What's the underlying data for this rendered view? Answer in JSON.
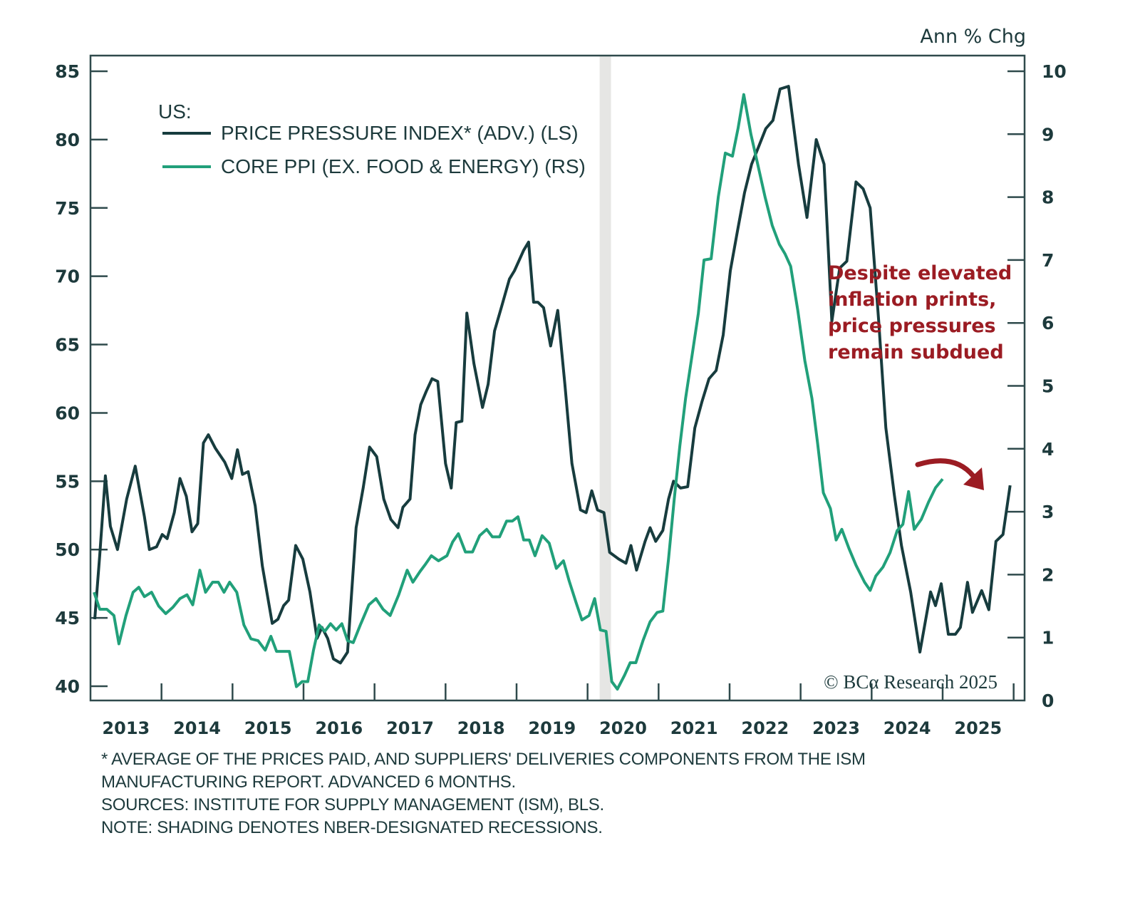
{
  "chart_data": {
    "type": "line",
    "title": "",
    "legend_heading": "US:",
    "legend_position": "top-left",
    "right_axis_title": "Ann % Chg",
    "annotation": [
      "Despite elevated",
      "inflation prints,",
      "price pressures",
      "remain subdued"
    ],
    "annotation_arrow": "curved-arrow-down-right",
    "copyright": "© BCα Research 2025",
    "x_range": [
      2013.0,
      2026.0
    ],
    "x_tick_labels": [
      "2013",
      "2014",
      "2015",
      "2016",
      "2017",
      "2018",
      "2019",
      "2020",
      "2021",
      "2022",
      "2023",
      "2024",
      "2025"
    ],
    "left_axis": {
      "label": "LS",
      "range": [
        40,
        85
      ],
      "ticks": [
        40,
        45,
        50,
        55,
        60,
        65,
        70,
        75,
        80,
        85
      ]
    },
    "right_axis": {
      "label": "RS",
      "range": [
        0,
        10
      ],
      "ticks": [
        0,
        1,
        2,
        3,
        4,
        5,
        6,
        7,
        8,
        9,
        10
      ]
    },
    "recessions": [
      [
        2020.17,
        2020.33
      ]
    ],
    "grid": false,
    "series": [
      {
        "name": "PRICE PRESSURE INDEX* (ADV.) (LS)",
        "axis": "left",
        "color": "#173c3e",
        "points": [
          [
            2013.06,
            44.9
          ],
          [
            2013.13,
            49.6
          ],
          [
            2013.21,
            55.4
          ],
          [
            2013.28,
            51.7
          ],
          [
            2013.38,
            50.0
          ],
          [
            2013.51,
            53.7
          ],
          [
            2013.63,
            56.1
          ],
          [
            2013.76,
            52.4
          ],
          [
            2013.83,
            50.0
          ],
          [
            2013.93,
            50.2
          ],
          [
            2014.01,
            51.1
          ],
          [
            2014.08,
            50.8
          ],
          [
            2014.18,
            52.7
          ],
          [
            2014.26,
            55.2
          ],
          [
            2014.35,
            53.9
          ],
          [
            2014.43,
            51.3
          ],
          [
            2014.51,
            51.9
          ],
          [
            2014.59,
            57.8
          ],
          [
            2014.66,
            58.4
          ],
          [
            2014.76,
            57.4
          ],
          [
            2014.89,
            56.4
          ],
          [
            2014.99,
            55.2
          ],
          [
            2015.07,
            57.3
          ],
          [
            2015.14,
            55.5
          ],
          [
            2015.22,
            55.7
          ],
          [
            2015.32,
            53.2
          ],
          [
            2015.42,
            48.8
          ],
          [
            2015.56,
            44.6
          ],
          [
            2015.64,
            44.9
          ],
          [
            2015.72,
            45.9
          ],
          [
            2015.79,
            46.3
          ],
          [
            2015.89,
            50.3
          ],
          [
            2015.99,
            49.3
          ],
          [
            2016.09,
            46.9
          ],
          [
            2016.19,
            43.5
          ],
          [
            2016.26,
            44.3
          ],
          [
            2016.34,
            43.5
          ],
          [
            2016.42,
            42.0
          ],
          [
            2016.52,
            41.7
          ],
          [
            2016.62,
            42.5
          ],
          [
            2016.74,
            51.6
          ],
          [
            2016.84,
            54.5
          ],
          [
            2016.93,
            57.5
          ],
          [
            2017.03,
            56.8
          ],
          [
            2017.13,
            53.7
          ],
          [
            2017.23,
            52.2
          ],
          [
            2017.33,
            51.6
          ],
          [
            2017.4,
            53.1
          ],
          [
            2017.5,
            53.7
          ],
          [
            2017.57,
            58.4
          ],
          [
            2017.65,
            60.6
          ],
          [
            2017.73,
            61.6
          ],
          [
            2017.81,
            62.5
          ],
          [
            2017.89,
            62.3
          ],
          [
            2018.0,
            56.3
          ],
          [
            2018.08,
            54.5
          ],
          [
            2018.15,
            59.3
          ],
          [
            2018.23,
            59.4
          ],
          [
            2018.3,
            67.3
          ],
          [
            2018.4,
            63.6
          ],
          [
            2018.52,
            60.4
          ],
          [
            2018.6,
            62.1
          ],
          [
            2018.69,
            66.0
          ],
          [
            2018.79,
            67.8
          ],
          [
            2018.9,
            69.8
          ],
          [
            2018.97,
            70.4
          ],
          [
            2019.1,
            71.9
          ],
          [
            2019.17,
            72.5
          ],
          [
            2019.24,
            68.1
          ],
          [
            2019.3,
            68.1
          ],
          [
            2019.38,
            67.7
          ],
          [
            2019.48,
            64.9
          ],
          [
            2019.58,
            67.5
          ],
          [
            2019.68,
            62.1
          ],
          [
            2019.78,
            56.3
          ],
          [
            2019.9,
            52.9
          ],
          [
            2019.98,
            52.7
          ],
          [
            2020.06,
            54.3
          ],
          [
            2020.14,
            52.9
          ],
          [
            2020.23,
            52.7
          ],
          [
            2020.31,
            49.8
          ],
          [
            2020.44,
            49.3
          ],
          [
            2020.54,
            49.0
          ],
          [
            2020.61,
            50.3
          ],
          [
            2020.69,
            48.5
          ],
          [
            2020.81,
            50.6
          ],
          [
            2020.88,
            51.6
          ],
          [
            2020.96,
            50.6
          ],
          [
            2021.06,
            51.4
          ],
          [
            2021.14,
            53.7
          ],
          [
            2021.21,
            55.0
          ],
          [
            2021.31,
            54.5
          ],
          [
            2021.41,
            54.6
          ],
          [
            2021.51,
            58.9
          ],
          [
            2021.61,
            60.8
          ],
          [
            2021.71,
            62.5
          ],
          [
            2021.81,
            63.1
          ],
          [
            2021.91,
            65.7
          ],
          [
            2022.01,
            70.4
          ],
          [
            2022.11,
            73.3
          ],
          [
            2022.21,
            76.1
          ],
          [
            2022.31,
            78.2
          ],
          [
            2022.41,
            79.5
          ],
          [
            2022.51,
            80.8
          ],
          [
            2022.61,
            81.4
          ],
          [
            2022.71,
            83.7
          ],
          [
            2022.83,
            83.9
          ],
          [
            2022.97,
            78.2
          ],
          [
            2023.09,
            74.3
          ],
          [
            2023.22,
            80.0
          ],
          [
            2023.33,
            78.2
          ],
          [
            2023.44,
            66.7
          ],
          [
            2023.55,
            70.6
          ],
          [
            2023.65,
            71.1
          ],
          [
            2023.78,
            76.9
          ],
          [
            2023.88,
            76.4
          ],
          [
            2023.98,
            75.0
          ],
          [
            2024.1,
            66.7
          ],
          [
            2024.2,
            58.9
          ],
          [
            2024.32,
            54.0
          ],
          [
            2024.42,
            50.3
          ],
          [
            2024.55,
            46.9
          ],
          [
            2024.68,
            42.5
          ],
          [
            2024.83,
            46.9
          ],
          [
            2024.9,
            45.9
          ],
          [
            2024.98,
            47.5
          ],
          [
            2025.08,
            43.8
          ],
          [
            2025.18,
            43.8
          ],
          [
            2025.25,
            44.3
          ],
          [
            2025.35,
            47.6
          ],
          [
            2025.42,
            45.4
          ],
          [
            2025.55,
            47.0
          ],
          [
            2025.65,
            45.6
          ],
          [
            2025.75,
            50.6
          ],
          [
            2025.85,
            51.1
          ],
          [
            2025.95,
            54.7
          ]
        ]
      },
      {
        "name": "CORE PPI (EX. FOOD & ENERGY) (RS)",
        "axis": "right",
        "color": "#21a07a",
        "points": [
          [
            2013.05,
            1.72
          ],
          [
            2013.13,
            1.45
          ],
          [
            2013.23,
            1.45
          ],
          [
            2013.33,
            1.35
          ],
          [
            2013.4,
            0.9
          ],
          [
            2013.5,
            1.35
          ],
          [
            2013.6,
            1.72
          ],
          [
            2013.68,
            1.8
          ],
          [
            2013.76,
            1.65
          ],
          [
            2013.86,
            1.72
          ],
          [
            2013.96,
            1.5
          ],
          [
            2014.06,
            1.38
          ],
          [
            2014.16,
            1.48
          ],
          [
            2014.26,
            1.62
          ],
          [
            2014.36,
            1.68
          ],
          [
            2014.44,
            1.52
          ],
          [
            2014.54,
            2.07
          ],
          [
            2014.62,
            1.72
          ],
          [
            2014.72,
            1.88
          ],
          [
            2014.8,
            1.88
          ],
          [
            2014.88,
            1.72
          ],
          [
            2014.96,
            1.88
          ],
          [
            2015.06,
            1.72
          ],
          [
            2015.16,
            1.2
          ],
          [
            2015.26,
            0.98
          ],
          [
            2015.36,
            0.95
          ],
          [
            2015.46,
            0.8
          ],
          [
            2015.54,
            1.02
          ],
          [
            2015.62,
            0.78
          ],
          [
            2015.72,
            0.78
          ],
          [
            2015.8,
            0.78
          ],
          [
            2015.9,
            0.22
          ],
          [
            2015.98,
            0.3
          ],
          [
            2016.06,
            0.3
          ],
          [
            2016.14,
            0.8
          ],
          [
            2016.22,
            1.2
          ],
          [
            2016.3,
            1.1
          ],
          [
            2016.38,
            1.22
          ],
          [
            2016.46,
            1.12
          ],
          [
            2016.54,
            1.22
          ],
          [
            2016.62,
            0.95
          ],
          [
            2016.7,
            0.92
          ],
          [
            2016.8,
            1.2
          ],
          [
            2016.92,
            1.52
          ],
          [
            2017.02,
            1.62
          ],
          [
            2017.12,
            1.45
          ],
          [
            2017.22,
            1.35
          ],
          [
            2017.34,
            1.68
          ],
          [
            2017.46,
            2.07
          ],
          [
            2017.54,
            1.88
          ],
          [
            2017.64,
            2.05
          ],
          [
            2017.72,
            2.17
          ],
          [
            2017.8,
            2.3
          ],
          [
            2017.9,
            2.22
          ],
          [
            2018.02,
            2.3
          ],
          [
            2018.1,
            2.52
          ],
          [
            2018.18,
            2.65
          ],
          [
            2018.28,
            2.36
          ],
          [
            2018.38,
            2.36
          ],
          [
            2018.48,
            2.62
          ],
          [
            2018.58,
            2.72
          ],
          [
            2018.66,
            2.6
          ],
          [
            2018.76,
            2.6
          ],
          [
            2018.86,
            2.85
          ],
          [
            2018.94,
            2.85
          ],
          [
            2019.02,
            2.92
          ],
          [
            2019.1,
            2.55
          ],
          [
            2019.18,
            2.55
          ],
          [
            2019.26,
            2.3
          ],
          [
            2019.36,
            2.62
          ],
          [
            2019.46,
            2.5
          ],
          [
            2019.56,
            2.1
          ],
          [
            2019.66,
            2.22
          ],
          [
            2019.74,
            1.9
          ],
          [
            2019.84,
            1.55
          ],
          [
            2019.92,
            1.28
          ],
          [
            2020.02,
            1.35
          ],
          [
            2020.1,
            1.62
          ],
          [
            2020.18,
            1.12
          ],
          [
            2020.26,
            1.1
          ],
          [
            2020.34,
            0.3
          ],
          [
            2020.42,
            0.18
          ],
          [
            2020.52,
            0.4
          ],
          [
            2020.6,
            0.6
          ],
          [
            2020.68,
            0.6
          ],
          [
            2020.78,
            0.95
          ],
          [
            2020.88,
            1.25
          ],
          [
            2020.98,
            1.4
          ],
          [
            2021.06,
            1.42
          ],
          [
            2021.14,
            2.25
          ],
          [
            2021.22,
            3.2
          ],
          [
            2021.3,
            4.05
          ],
          [
            2021.38,
            4.8
          ],
          [
            2021.48,
            5.55
          ],
          [
            2021.56,
            6.15
          ],
          [
            2021.64,
            7.0
          ],
          [
            2021.74,
            7.02
          ],
          [
            2021.84,
            8.0
          ],
          [
            2021.94,
            8.7
          ],
          [
            2022.04,
            8.65
          ],
          [
            2022.12,
            9.1
          ],
          [
            2022.2,
            9.63
          ],
          [
            2022.3,
            9.0
          ],
          [
            2022.4,
            8.5
          ],
          [
            2022.5,
            8.0
          ],
          [
            2022.6,
            7.55
          ],
          [
            2022.7,
            7.25
          ],
          [
            2022.78,
            7.1
          ],
          [
            2022.86,
            6.9
          ],
          [
            2022.96,
            6.2
          ],
          [
            2023.06,
            5.4
          ],
          [
            2023.16,
            4.8
          ],
          [
            2023.24,
            4.08
          ],
          [
            2023.32,
            3.3
          ],
          [
            2023.42,
            3.05
          ],
          [
            2023.5,
            2.55
          ],
          [
            2023.58,
            2.72
          ],
          [
            2023.68,
            2.42
          ],
          [
            2023.78,
            2.15
          ],
          [
            2023.9,
            1.88
          ],
          [
            2023.98,
            1.75
          ],
          [
            2024.06,
            1.98
          ],
          [
            2024.16,
            2.12
          ],
          [
            2024.26,
            2.35
          ],
          [
            2024.36,
            2.7
          ],
          [
            2024.44,
            2.8
          ],
          [
            2024.52,
            3.32
          ],
          [
            2024.6,
            2.72
          ],
          [
            2024.7,
            2.88
          ],
          [
            2024.8,
            3.15
          ],
          [
            2024.9,
            3.38
          ],
          [
            2025.0,
            3.52
          ]
        ]
      }
    ]
  },
  "footnotes": [
    "* AVERAGE OF THE PRICES PAID, AND SUPPLIERS' DELIVERIES COMPONENTS FROM THE ISM",
    "MANUFACTURING REPORT. ADVANCED 6 MONTHS.",
    "SOURCES: INSTITUTE FOR SUPPLY MANAGEMENT (ISM), BLS.",
    "NOTE: SHADING DENOTES NBER-DESIGNATED RECESSIONS."
  ]
}
